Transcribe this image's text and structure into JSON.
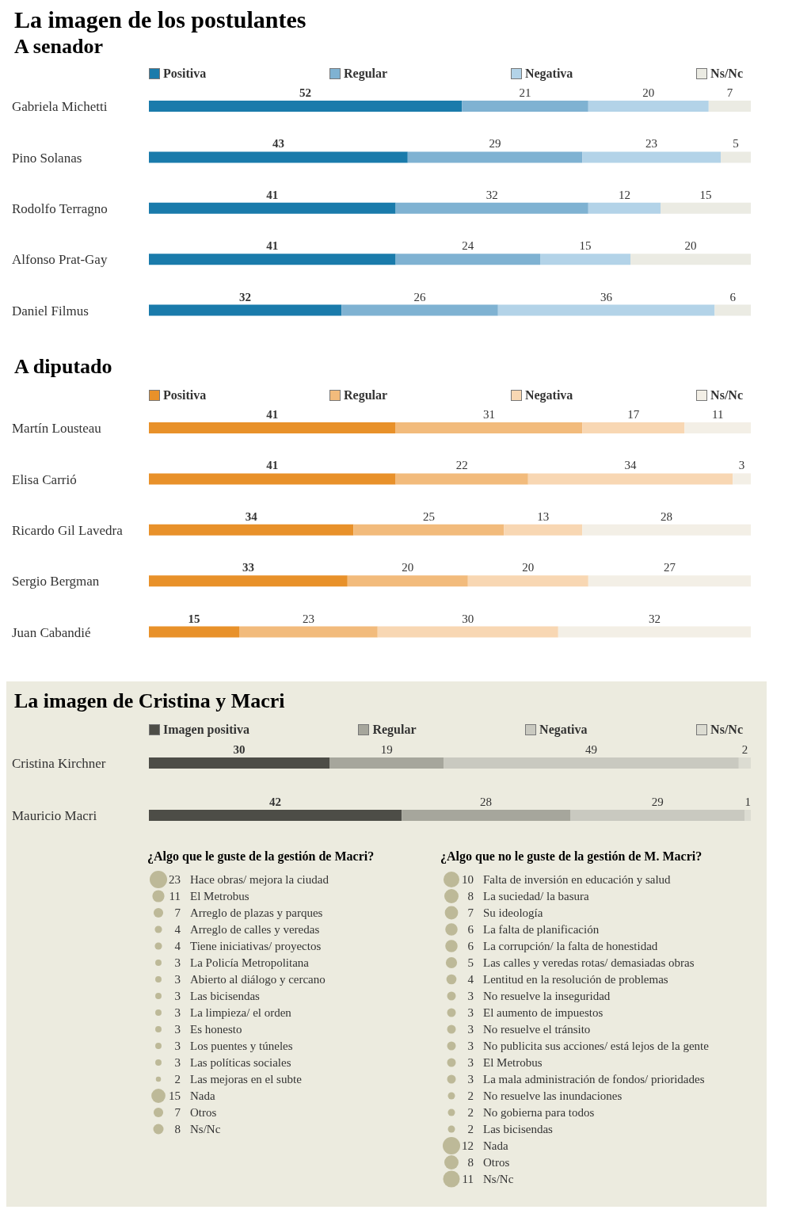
{
  "chart_data": [
    {
      "type": "bar",
      "orientation": "horizontal",
      "stacked": true,
      "title": "La imagen de los postulantes",
      "subtitle": "A senador",
      "legend": "top",
      "tick_labels": "y",
      "data_labels": true,
      "categories": [
        "Gabriela Michetti",
        "Pino Solanas",
        "Rodolfo Terragno",
        "Alfonso Prat-Gay",
        "Daniel Filmus"
      ],
      "series": [
        {
          "name": "Positiva",
          "color": "#1a7bab",
          "values": [
            52,
            43,
            41,
            41,
            32
          ]
        },
        {
          "name": "Regular",
          "color": "#7fb2d2",
          "values": [
            21,
            29,
            32,
            24,
            26
          ]
        },
        {
          "name": "Negativa",
          "color": "#b3d3e8",
          "values": [
            20,
            23,
            12,
            15,
            36
          ]
        },
        {
          "name": "Ns/Nc",
          "color": "#ebebe3",
          "values": [
            7,
            5,
            15,
            20,
            6
          ]
        }
      ]
    },
    {
      "type": "bar",
      "orientation": "horizontal",
      "stacked": true,
      "title": "A diputado",
      "legend": "top",
      "tick_labels": "y",
      "data_labels": true,
      "categories": [
        "Martín Lousteau",
        "Elisa Carrió",
        "Ricardo Gil Lavedra",
        "Sergio Bergman",
        "Juan Cabandié"
      ],
      "series": [
        {
          "name": "Positiva",
          "color": "#e8912a",
          "values": [
            41,
            41,
            34,
            33,
            15
          ]
        },
        {
          "name": "Regular",
          "color": "#f2bb7c",
          "values": [
            31,
            22,
            25,
            20,
            23
          ]
        },
        {
          "name": "Negativa",
          "color": "#f8d7b3",
          "values": [
            17,
            34,
            13,
            20,
            30
          ]
        },
        {
          "name": "Ns/Nc",
          "color": "#f3efe6",
          "values": [
            11,
            3,
            28,
            27,
            32
          ]
        }
      ]
    },
    {
      "type": "bar",
      "orientation": "horizontal",
      "stacked": true,
      "title": "La imagen de Cristina y Macri",
      "legend": "top",
      "tick_labels": "y",
      "data_labels": true,
      "categories": [
        "Cristina Kirchner",
        "Mauricio Macri"
      ],
      "series": [
        {
          "name": "Imagen positiva",
          "color": "#4d4d47",
          "values": [
            30,
            42
          ]
        },
        {
          "name": "Regular",
          "color": "#a6a69c",
          "values": [
            19,
            28
          ]
        },
        {
          "name": "Negativa",
          "color": "#c9c9c0",
          "values": [
            49,
            29
          ]
        },
        {
          "name": "Ns/Nc",
          "color": "#dcdcd2",
          "values": [
            2,
            1
          ]
        }
      ]
    },
    {
      "type": "other",
      "title": "¿Algo que le guste de la gestión de Macri?",
      "data_labels": true,
      "color": "#bdb998",
      "categories": [
        "Hace obras/ mejora la ciudad",
        "El Metrobus",
        "Arreglo de plazas y parques",
        "Arreglo de calles y veredas",
        "Tiene iniciativas/ proyectos",
        "La Policía Metropolitana",
        "Abierto al diálogo y cercano",
        "Las bicisendas",
        "La limpieza/ el orden",
        "Es honesto",
        "Los puentes y túneles",
        "Las políticas sociales",
        "Las mejoras en el subte",
        "Nada",
        "Otros",
        "Ns/Nc"
      ],
      "values": [
        23,
        11,
        7,
        4,
        4,
        3,
        3,
        3,
        3,
        3,
        3,
        3,
        2,
        15,
        7,
        8
      ]
    },
    {
      "type": "other",
      "title": "¿Algo que no le guste de la gestión de M. Macri?",
      "data_labels": true,
      "color": "#bdb998",
      "categories": [
        "Falta de inversión en educación y salud",
        "La suciedad/ la basura",
        "Su ideología",
        "La falta de planificación",
        "La corrupción/ la falta de honestidad",
        "Las calles y veredas rotas/ demasiadas obras",
        "Lentitud en la resolución de problemas",
        "No resuelve la inseguridad",
        "El aumento de impuestos",
        "No resuelve el tránsito",
        "No publicita sus acciones/ está lejos de la gente",
        "El Metrobus",
        "La mala administración de fondos/ prioridades",
        "No resuelve las inundaciones",
        "No gobierna para todos",
        "Las bicisendas",
        "Nada",
        "Otros",
        "Ns/Nc"
      ],
      "values": [
        10,
        8,
        7,
        6,
        6,
        5,
        4,
        3,
        3,
        3,
        3,
        3,
        3,
        2,
        2,
        2,
        12,
        8,
        11
      ]
    }
  ]
}
